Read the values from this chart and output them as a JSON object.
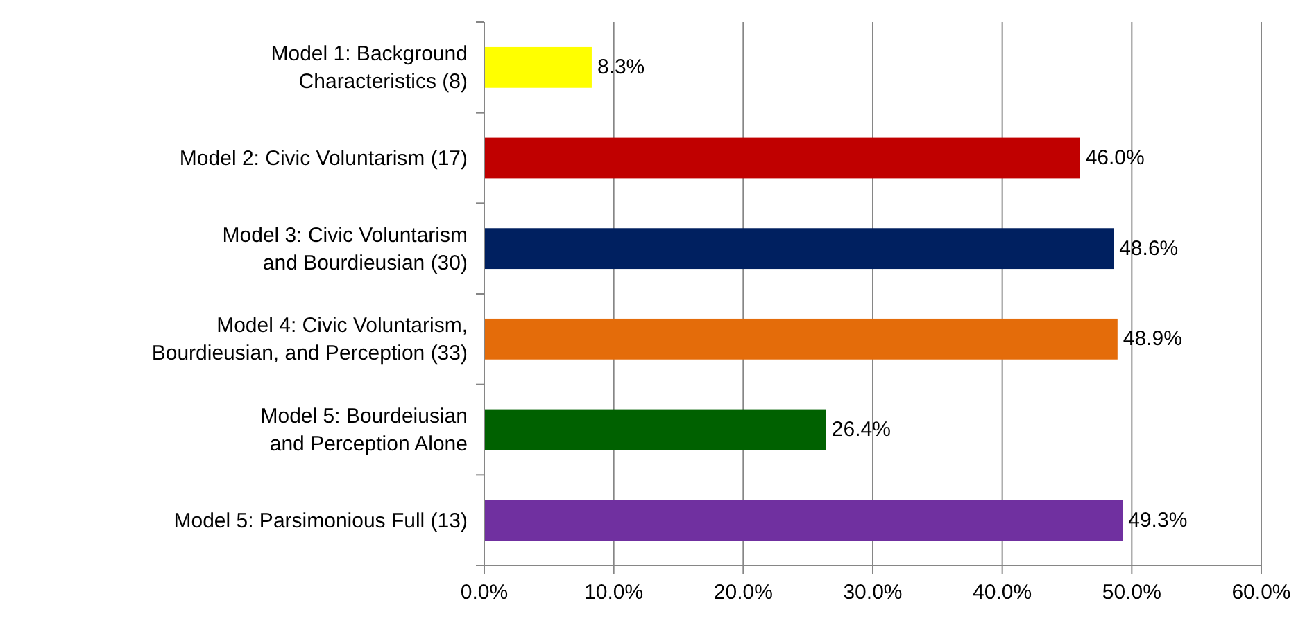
{
  "chart_data": {
    "type": "bar",
    "orientation": "horizontal",
    "categories": [
      "Model 1: Background\nCharacteristics (8)",
      "Model 2: Civic Voluntarism (17)",
      "Model 3: Civic Voluntarism\nand Bourdieusian (30)",
      "Model 4: Civic Voluntarism,\nBourdieusian, and Perception (33)",
      "Model 5: Bourdeiusian\nand Perception Alone",
      "Model 5: Parsimonious Full (13)"
    ],
    "values": [
      8.3,
      46.0,
      48.6,
      48.9,
      26.4,
      49.3
    ],
    "colors": [
      "#ffff00",
      "#c00000",
      "#002060",
      "#e46c0a",
      "#006100",
      "#7030a0"
    ],
    "value_labels": [
      "8.3%",
      "46.0%",
      "48.6%",
      "48.9%",
      "26.4%",
      "49.3%"
    ],
    "xlim": [
      0,
      60
    ],
    "xticks": [
      {
        "value": 0,
        "label": "0.0%"
      },
      {
        "value": 10,
        "label": "10.0%"
      },
      {
        "value": 20,
        "label": "20.0%"
      },
      {
        "value": 30,
        "label": "30.0%"
      },
      {
        "value": 40,
        "label": "40.0%"
      },
      {
        "value": 50,
        "label": "50.0%"
      },
      {
        "value": 60,
        "label": "60.0%"
      }
    ],
    "grid": "x"
  }
}
